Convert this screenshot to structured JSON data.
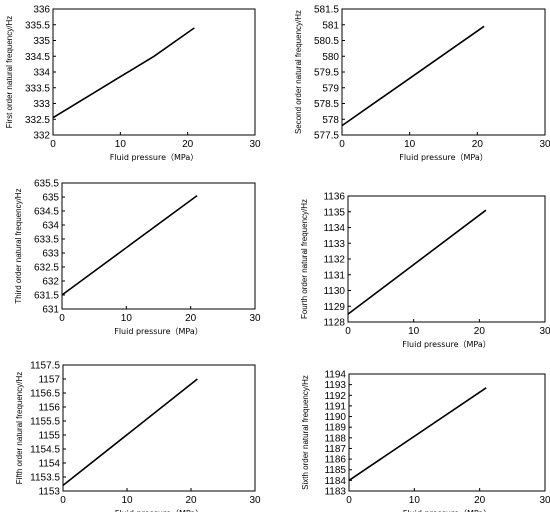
{
  "chart_data": [
    {
      "type": "line",
      "xlabel": "Fluid pressure（MPa）",
      "ylabel": "First order natural frequency/Hz",
      "xlim": [
        0,
        30
      ],
      "xticks": [
        0,
        10,
        20,
        30
      ],
      "ylim": [
        332,
        336
      ],
      "yticks": [
        "332",
        "332.5",
        "333",
        "333.5",
        "334",
        "334.5",
        "335",
        "335.5",
        "336"
      ],
      "grid": false,
      "series": [
        {
          "x": [
            0,
            5,
            10,
            15,
            21
          ],
          "y": [
            332.55,
            333.2,
            333.85,
            334.5,
            335.4
          ]
        }
      ]
    },
    {
      "type": "line",
      "xlabel": "Fluid pressure（MPa）",
      "ylabel": "Second order natural frequency/Hz",
      "xlim": [
        0,
        30
      ],
      "xticks": [
        0,
        10,
        20,
        30
      ],
      "ylim": [
        577.5,
        581.5
      ],
      "yticks": [
        "577.5",
        "578",
        "578.5",
        "579",
        "579.5",
        "580",
        "580.5",
        "581",
        "581.5"
      ],
      "grid": false,
      "series": [
        {
          "x": [
            0,
            21
          ],
          "y": [
            577.8,
            580.95
          ]
        }
      ]
    },
    {
      "type": "line",
      "xlabel": "Fluid pressure（MPa）",
      "ylabel": "Third order natural frequency/Hz",
      "xlim": [
        0,
        30
      ],
      "xticks": [
        0,
        10,
        20,
        30
      ],
      "ylim": [
        631,
        635.5
      ],
      "yticks": [
        "631",
        "631.5",
        "632",
        "632.5",
        "633",
        "633.5",
        "634",
        "634.5",
        "635",
        "635.5"
      ],
      "grid": false,
      "series": [
        {
          "x": [
            0,
            21
          ],
          "y": [
            631.5,
            635.05
          ]
        }
      ]
    },
    {
      "type": "line",
      "xlabel": "Fluid pressure（MPa）",
      "ylabel": "Fourth order natural frequency/Hz",
      "xlim": [
        0,
        30
      ],
      "xticks": [
        0,
        10,
        20,
        30
      ],
      "ylim": [
        1128,
        1136
      ],
      "yticks": [
        "1128",
        "1129",
        "1130",
        "1131",
        "1132",
        "1133",
        "1134",
        "1135",
        "1136"
      ],
      "grid": false,
      "series": [
        {
          "x": [
            0,
            21
          ],
          "y": [
            1128.5,
            1135.1
          ]
        }
      ]
    },
    {
      "type": "line",
      "xlabel": "Fluid pressure（MPa）",
      "ylabel": "Fifth order natural frequency/Hz",
      "xlim": [
        0,
        30
      ],
      "xticks": [
        0,
        10,
        20,
        30
      ],
      "ylim": [
        1153,
        1157.5
      ],
      "yticks": [
        "1153",
        "1153.5",
        "1154",
        "1154.5",
        "1155",
        "1155.5",
        "1156",
        "1156.5",
        "1157",
        "1157.5"
      ],
      "grid": false,
      "series": [
        {
          "x": [
            0,
            21
          ],
          "y": [
            1153.2,
            1157
          ]
        }
      ]
    },
    {
      "type": "line",
      "xlabel": "Fluid pressure（MPa）",
      "ylabel": "Sixth order natural frequency/Hz",
      "xlim": [
        0,
        30
      ],
      "xticks": [
        0,
        10,
        20,
        30
      ],
      "ylim": [
        1183,
        1194
      ],
      "yticks": [
        "1183",
        "1184",
        "1185",
        "1186",
        "1187",
        "1188",
        "1189",
        "1190",
        "1191",
        "1192",
        "1193",
        "1194"
      ],
      "grid": false,
      "series": [
        {
          "x": [
            0,
            21
          ],
          "y": [
            1184,
            1192.7
          ]
        }
      ]
    }
  ]
}
